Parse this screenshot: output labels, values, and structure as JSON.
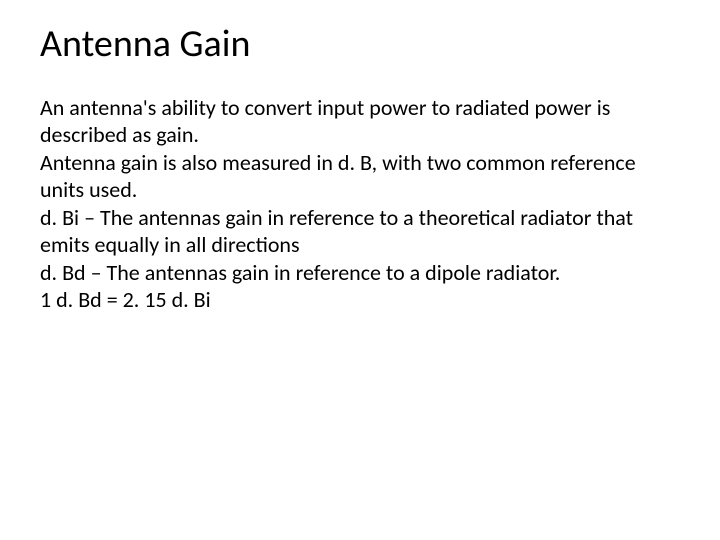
{
  "slide": {
    "title": "Antenna Gain",
    "body_lines": [
      "An antenna's ability to convert input power to radiated power is described as gain.",
      "Antenna gain is also measured in d. B, with two common reference units used.",
      "d. Bi – The antennas gain in reference to a theoretical radiator that emits equally in all directions",
      "d. Bd – The antennas gain in reference to a dipole radiator.",
      "1 d. Bd = 2. 15 d. Bi"
    ],
    "background_color": "#ffffff",
    "title_color": "#000000",
    "body_color": "#000000",
    "title_fontsize": 38,
    "body_fontsize": 22
  }
}
